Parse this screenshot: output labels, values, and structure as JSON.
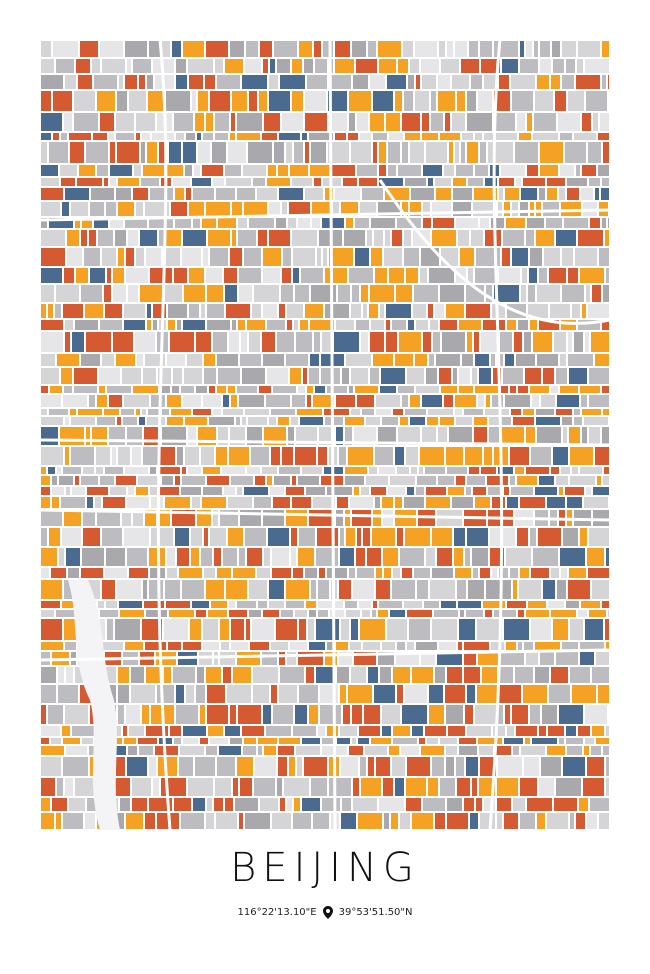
{
  "poster": {
    "title": "BEIJING",
    "longitude": "116°22'13.10\"E",
    "latitude": "39°53'51.50\"N"
  }
}
